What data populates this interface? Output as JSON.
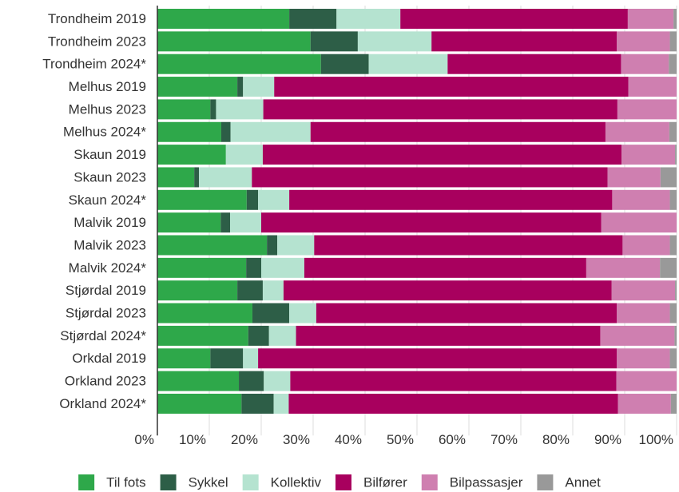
{
  "chart_data": {
    "type": "stacked-bar-horizontal",
    "categories": [
      "Trondheim 2019",
      "Trondheim 2023",
      "Trondheim 2024*",
      "Melhus 2019",
      "Melhus 2023",
      "Melhus 2024*",
      "Skaun 2019",
      "Skaun 2023",
      "Skaun 2024*",
      "Malvik 2019",
      "Malvik 2023",
      "Malvik 2024*",
      "Stjørdal 2019",
      "Stjørdal 2023",
      "Stjørdal 2024*",
      "Orkdal 2019",
      "Orkland 2023",
      "Orkland 2024*"
    ],
    "series": [
      {
        "name": "Til fots",
        "color": "#2ea84a",
        "values": [
          25.4,
          29.5,
          31.5,
          15.4,
          10.2,
          12.3,
          13.2,
          7.1,
          17.2,
          12.2,
          21.1,
          17.1,
          15.4,
          18.3,
          17.5,
          10.2,
          15.7,
          16.2
        ]
      },
      {
        "name": "Sykkel",
        "color": "#2d5e47",
        "values": [
          9.1,
          9.1,
          9.2,
          1.1,
          1.1,
          1.8,
          0,
          0.9,
          2.2,
          1.8,
          2.0,
          2.9,
          4.9,
          7.1,
          4.0,
          6.3,
          4.8,
          6.2
        ]
      },
      {
        "name": "Kollektiv",
        "color": "#b5e3d0",
        "values": [
          12.3,
          14.2,
          15.2,
          6.0,
          9.1,
          15.4,
          7.1,
          10.2,
          6.0,
          6.0,
          7.1,
          8.3,
          4.0,
          5.2,
          5.2,
          2.9,
          5.1,
          2.9
        ]
      },
      {
        "name": "Bilfører",
        "color": "#a8005e",
        "values": [
          43.8,
          35.7,
          33.4,
          68.2,
          68.2,
          56.8,
          69.1,
          68.5,
          62.2,
          65.5,
          59.4,
          54.3,
          63.2,
          57.9,
          58.6,
          69.1,
          62.8,
          63.4
        ]
      },
      {
        "name": "Bilpassasjer",
        "color": "#cf7fb0",
        "values": [
          8.8,
          10.2,
          9.2,
          9.3,
          11.4,
          12.3,
          10.3,
          10.2,
          11.1,
          14.5,
          9.1,
          14.2,
          12.2,
          10.2,
          14.3,
          10.2,
          11.6,
          10.2
        ]
      },
      {
        "name": "Annet",
        "color": "#999999",
        "values": [
          0.6,
          1.3,
          1.5,
          0,
          0,
          1.4,
          0.3,
          3.1,
          1.3,
          0,
          1.3,
          3.2,
          0.3,
          1.3,
          0.4,
          1.3,
          0,
          1.1
        ]
      }
    ],
    "xlim": [
      0,
      100
    ],
    "xticks": [
      {
        "value": 0,
        "label": "0%"
      },
      {
        "value": 10,
        "label": "10%"
      },
      {
        "value": 20,
        "label": "20%"
      },
      {
        "value": 30,
        "label": "30%"
      },
      {
        "value": 40,
        "label": "40%"
      },
      {
        "value": 50,
        "label": "50%"
      },
      {
        "value": 60,
        "label": "60%"
      },
      {
        "value": 70,
        "label": "70%"
      },
      {
        "value": 80,
        "label": "80%"
      },
      {
        "value": 90,
        "label": "90%"
      },
      {
        "value": 100,
        "label": "100%"
      }
    ],
    "grid": true,
    "legend": "bottom"
  }
}
